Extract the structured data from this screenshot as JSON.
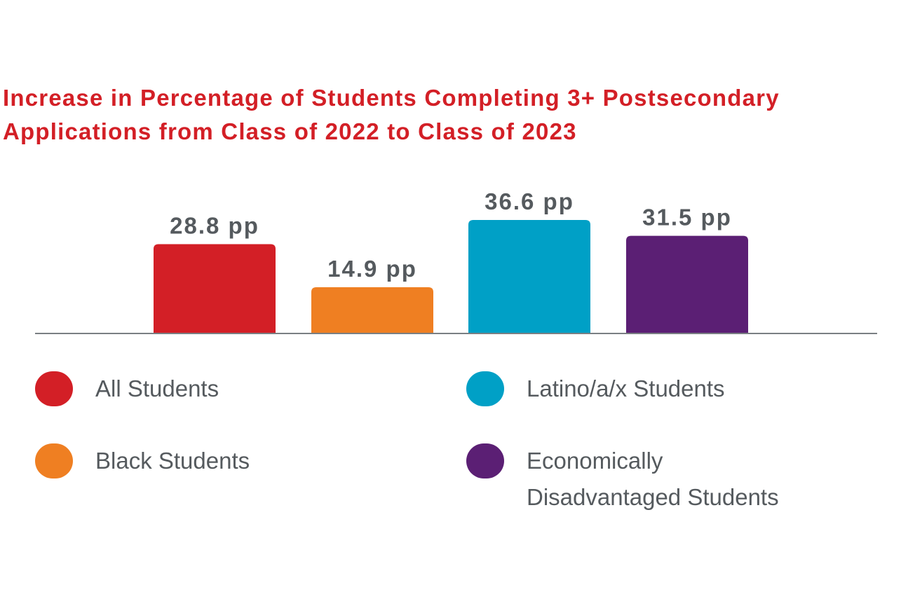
{
  "chart_data": {
    "type": "bar",
    "title_lines": [
      "Increase in Percentage of Students Completing 3+ Postsecondary",
      "Applications from Class of 2022 to Class of 2023"
    ],
    "categories": [
      "All Students",
      "Black Students",
      "Latino/a/x Students",
      "Economically Disadvantaged Students"
    ],
    "values": [
      28.8,
      14.9,
      36.6,
      31.5
    ],
    "value_labels": [
      "28.8 pp",
      "14.9 pp",
      "36.6 pp",
      "31.5 pp"
    ],
    "colors": [
      "#d31f26",
      "#ef7f22",
      "#00a0c6",
      "#5b1f74"
    ],
    "ylim": [
      0,
      36.6
    ],
    "grid": false,
    "legend": {
      "placement": "bottom",
      "items": [
        {
          "label": "All Students",
          "color": "#d31f26"
        },
        {
          "label": "Black Students",
          "color": "#ef7f22"
        },
        {
          "label": "Latino/a/x Students",
          "color": "#00a0c6"
        },
        {
          "label": "Economically\nDisadvantaged Students",
          "color": "#5b1f74"
        }
      ]
    }
  }
}
